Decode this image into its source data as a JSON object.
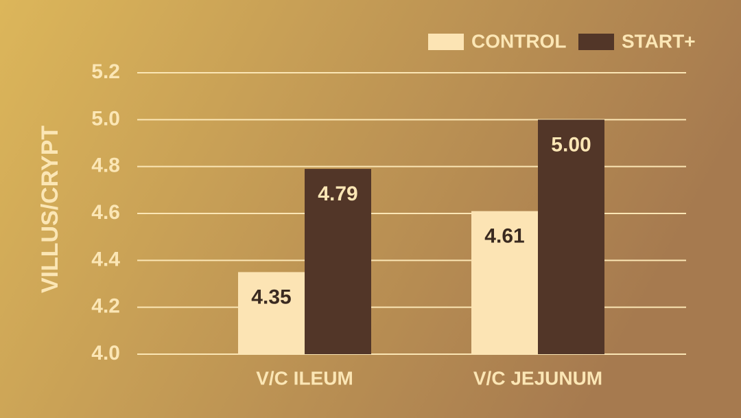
{
  "chart_data": {
    "type": "bar",
    "y_label": "VILLUS/CRYPT",
    "categories": [
      "V/C ILEUM",
      "V/C JEJUNUM"
    ],
    "series": [
      {
        "name": "CONTROL",
        "color": "#fce4b4",
        "values": [
          4.35,
          4.61
        ],
        "value_labels": [
          "4.35",
          "4.61"
        ]
      },
      {
        "name": "START+",
        "color": "#523628",
        "values": [
          4.79,
          5.0
        ],
        "value_labels": [
          "4.79",
          "5.00"
        ]
      }
    ],
    "ylim": [
      4.0,
      5.2
    ],
    "yticks": [
      {
        "value": 4.0,
        "label": "4.0"
      },
      4.2,
      4.4,
      4.6,
      4.8,
      {
        "value": 5.0,
        "label": "5.0"
      },
      5.2
    ],
    "grid": true
  }
}
